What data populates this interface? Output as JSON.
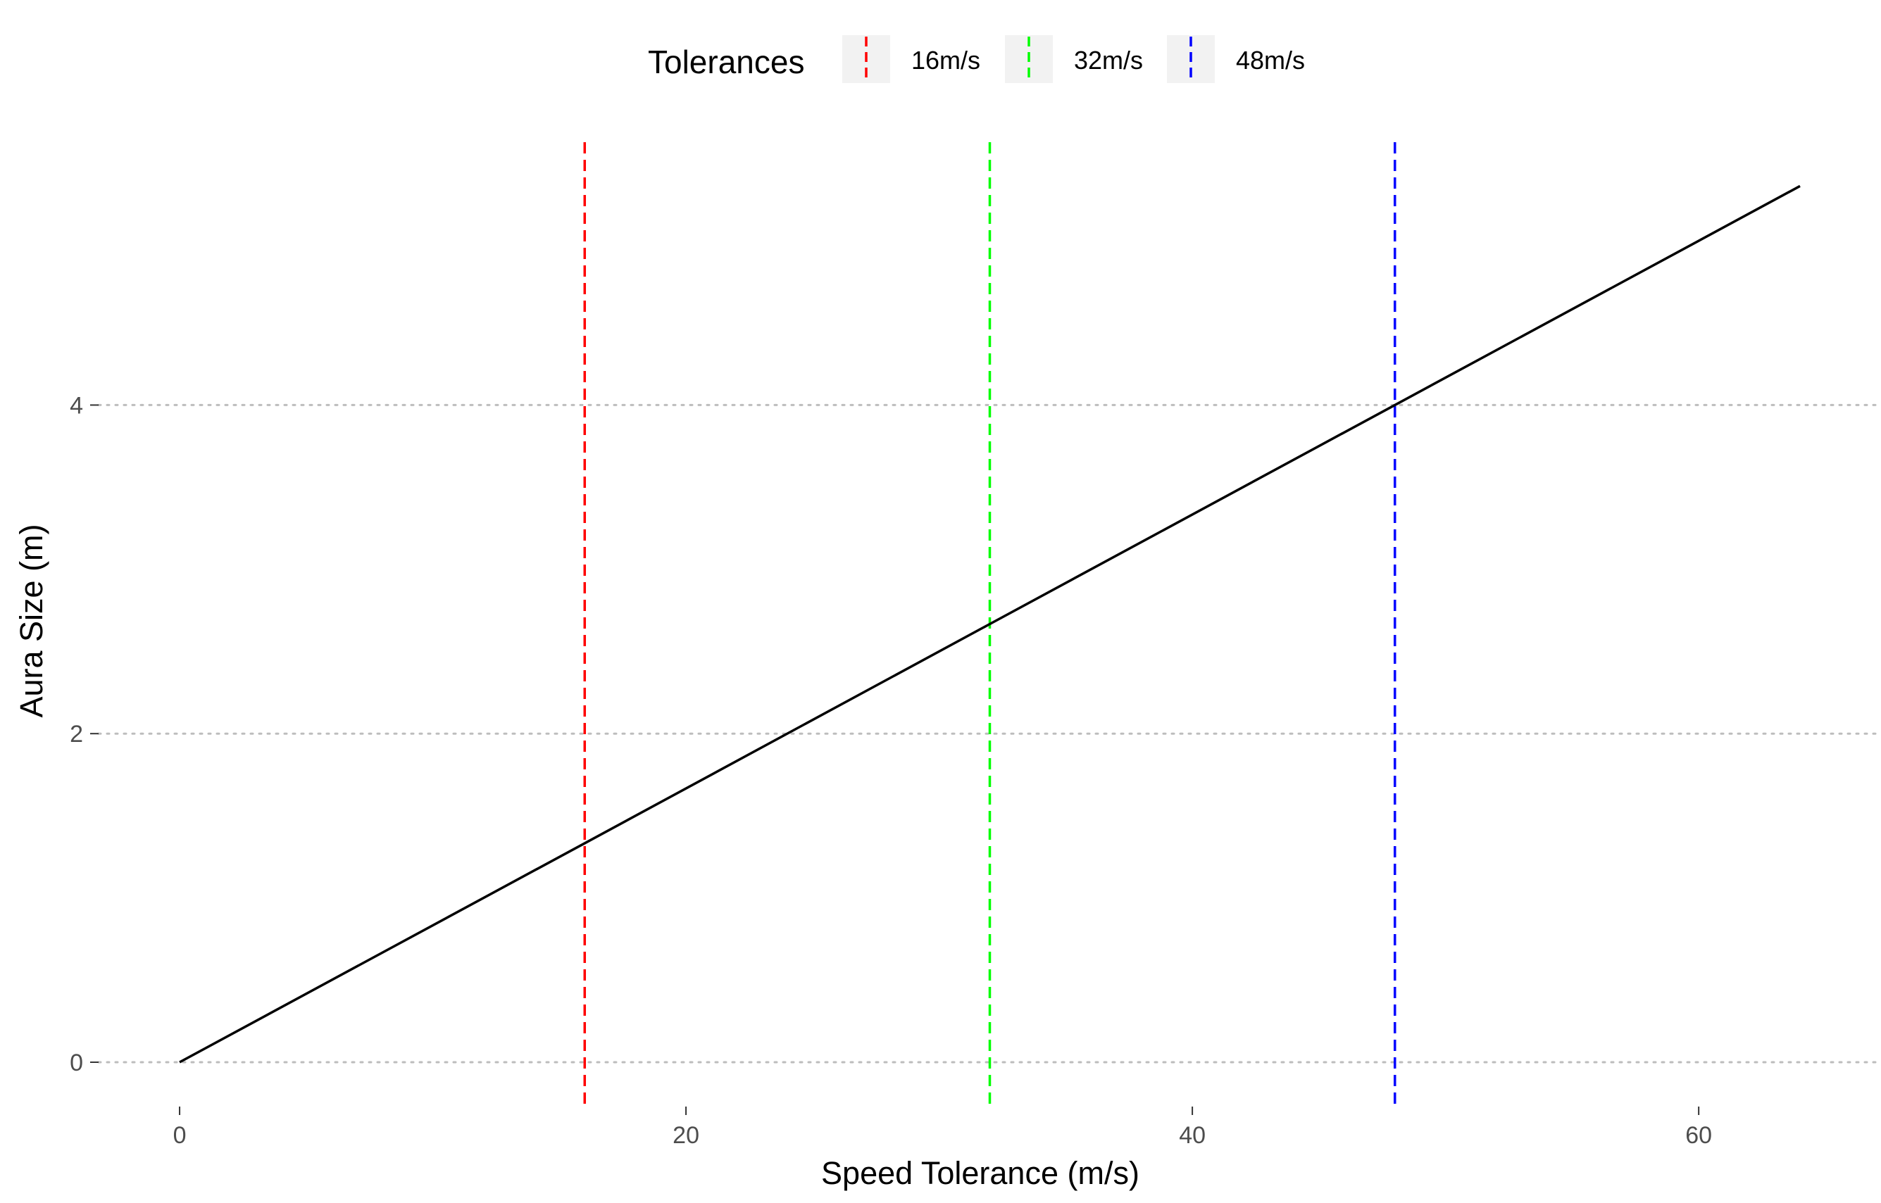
{
  "chart_data": {
    "type": "line",
    "title": "",
    "xlabel": "Speed Tolerance (m/s)",
    "ylabel": "Aura Size (m)",
    "xlim": [
      -3.2,
      67.2
    ],
    "ylim": [
      -0.27,
      5.6
    ],
    "x_ticks": [
      0,
      20,
      40,
      60
    ],
    "x_tick_labels": [
      "0",
      "20",
      "40",
      "60"
    ],
    "y_ticks": [
      0,
      2,
      4
    ],
    "y_tick_labels": [
      "0",
      "2",
      "4"
    ],
    "grid": "horizontal-dotted",
    "series": [
      {
        "color": "#000000",
        "x": [
          0,
          16,
          32,
          48,
          64
        ],
        "y": [
          0,
          1.333,
          2.667,
          4.0,
          5.333
        ]
      }
    ],
    "vlines": [
      {
        "x": 16,
        "label": "16m/s",
        "color": "#ff0000",
        "style": "dashed"
      },
      {
        "x": 32,
        "label": "32m/s",
        "color": "#00ff00",
        "style": "dashed"
      },
      {
        "x": 48,
        "label": "48m/s",
        "color": "#0000ff",
        "style": "dashed"
      }
    ],
    "legend": {
      "title": "Tolerances",
      "placement": "top",
      "entries": [
        "16m/s",
        "32m/s",
        "48m/s"
      ]
    }
  }
}
